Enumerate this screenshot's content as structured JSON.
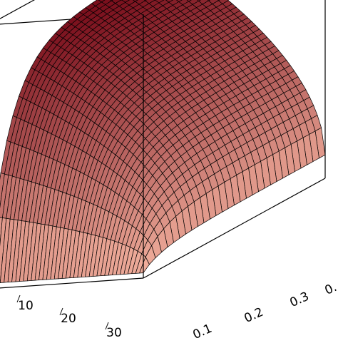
{
  "chart_data": {
    "type": "surface",
    "title": "",
    "xlabel": "",
    "ylabel": "",
    "zlabel": "",
    "grid": false,
    "x_ticks": [
      "10",
      "20",
      "30"
    ],
    "y_ticks": [
      "0.1",
      "0.2",
      "0.3",
      "0."
    ],
    "surface_colors": {
      "low": "#f4b3a0",
      "high": "#7a0f1c",
      "floor_patch": "#7fd0f0",
      "mesh_line": "#000000"
    }
  }
}
